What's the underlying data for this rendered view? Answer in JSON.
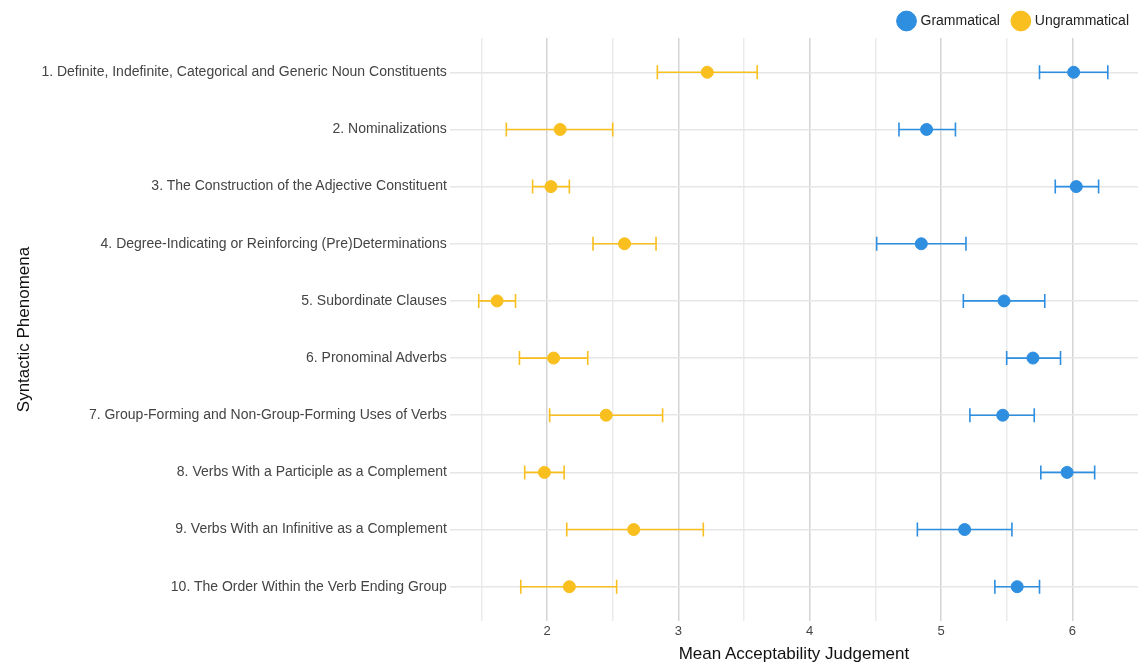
{
  "chart_data": {
    "type": "scatter",
    "orientation": "horizontal",
    "xlabel": "Mean Acceptability Judgement",
    "ylabel": "Syntactic Phenomena",
    "categories": [
      "1. Definite, Indefinite, Categorical and Generic Noun Constituents",
      "2. Nominalizations",
      "3. The Construction of the Adjective Constituent",
      "4. Degree-Indicating or Reinforcing (Pre)Determinations",
      "5. Subordinate Clauses",
      "6. Pronominal Adverbs",
      "7. Group-Forming and Non-Group-Forming Uses of Verbs",
      "8. Verbs With a Participle as a Complement",
      "9. Verbs With an Infinitive as a Complement",
      "10. The Order Within the Verb Ending Group"
    ],
    "series": [
      {
        "name": "Grammatical",
        "color": "#2e8ee0",
        "values": [
          6.01,
          4.89,
          6.03,
          4.85,
          5.48,
          5.7,
          5.47,
          5.96,
          5.18,
          5.58
        ],
        "errors": [
          [
            5.75,
            6.27
          ],
          [
            4.68,
            5.11
          ],
          [
            5.87,
            6.2
          ],
          [
            4.51,
            5.19
          ],
          [
            5.17,
            5.79
          ],
          [
            5.5,
            5.91
          ],
          [
            5.22,
            5.71
          ],
          [
            5.76,
            6.17
          ],
          [
            4.82,
            5.54
          ],
          [
            5.41,
            5.75
          ]
        ]
      },
      {
        "name": "Ungrammatical",
        "color": "#f9bf1f",
        "values": [
          3.22,
          2.1,
          2.03,
          2.59,
          1.62,
          2.05,
          2.45,
          1.98,
          2.66,
          2.17
        ],
        "errors": [
          [
            2.84,
            3.6
          ],
          [
            1.69,
            2.5
          ],
          [
            1.89,
            2.17
          ],
          [
            2.35,
            2.83
          ],
          [
            1.48,
            1.76
          ],
          [
            1.79,
            2.31
          ],
          [
            2.02,
            2.88
          ],
          [
            1.83,
            2.13
          ],
          [
            2.15,
            3.19
          ],
          [
            1.8,
            2.53
          ]
        ]
      }
    ],
    "xlim": [
      1.26,
      6.5
    ],
    "xticks": [
      {
        "value": 1.5,
        "label": null
      },
      2,
      {
        "value": 2.5,
        "label": null
      },
      3,
      {
        "value": 3.5,
        "label": null
      },
      4,
      {
        "value": 4.5,
        "label": null
      },
      5,
      {
        "value": 5.5,
        "label": null
      },
      6
    ],
    "grid": true,
    "legend": "top",
    "marker": "circle"
  }
}
